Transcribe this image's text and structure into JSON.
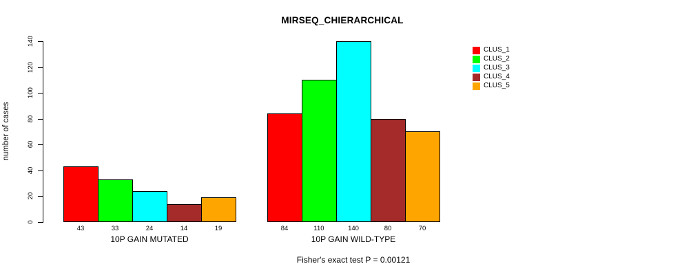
{
  "chart_data": {
    "type": "bar",
    "title": "MIRSEQ_CHIERARCHICAL",
    "xlabel": "",
    "ylabel": "number of cases",
    "ylim": [
      0,
      140
    ],
    "yticks": [
      0,
      20,
      40,
      60,
      80,
      100,
      120,
      140
    ],
    "grid": false,
    "legend_position": "right",
    "categories": [
      "10P GAIN MUTATED",
      "10P GAIN WILD-TYPE"
    ],
    "series": [
      {
        "name": "CLUS_1",
        "color": "#FF0000",
        "values": [
          43,
          84
        ]
      },
      {
        "name": "CLUS_2",
        "color": "#00FF00",
        "values": [
          33,
          110
        ]
      },
      {
        "name": "CLUS_3",
        "color": "#00FFFF",
        "values": [
          24,
          140
        ]
      },
      {
        "name": "CLUS_4",
        "color": "#A52A2A",
        "values": [
          14,
          80
        ]
      },
      {
        "name": "CLUS_5",
        "color": "#FFA500",
        "values": [
          19,
          70
        ]
      }
    ],
    "groups": [
      {
        "label": "10P GAIN MUTATED",
        "values": [
          43,
          33,
          24,
          14,
          19
        ]
      },
      {
        "label": "10P GAIN WILD-TYPE",
        "values": [
          84,
          110,
          140,
          80,
          70
        ]
      }
    ],
    "bar_value_labels_shown": true,
    "legend": [
      {
        "label": "CLUS_1",
        "color": "#FF0000"
      },
      {
        "label": "CLUS_2",
        "color": "#00FF00"
      },
      {
        "label": "CLUS_3",
        "color": "#00FFFF"
      },
      {
        "label": "CLUS_4",
        "color": "#A52A2A"
      },
      {
        "label": "CLUS_5",
        "color": "#FFA500"
      }
    ],
    "annotation": "Fisher's exact test P = 0.00121",
    "axis_color": "#000000",
    "background_color": "#FFFFFF"
  }
}
